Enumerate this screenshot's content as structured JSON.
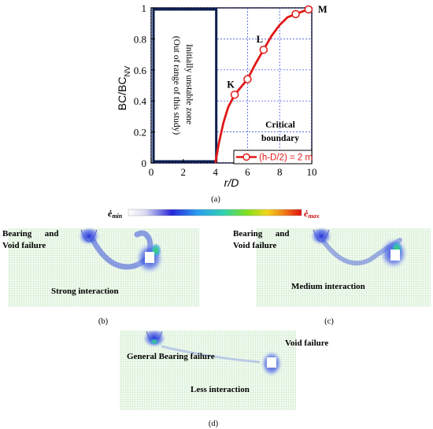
{
  "chart_data": {
    "type": "line",
    "xlabel": "r/D",
    "ylabel_main": "BC/BC",
    "ylabel_sub": "NV",
    "xlim": [
      0,
      10
    ],
    "ylim": [
      0,
      1
    ],
    "x_ticks": [
      "0",
      "2",
      "4",
      "6",
      "8",
      "10"
    ],
    "y_ticks": [
      "0",
      "0.2",
      "0.4",
      "0.6",
      "0.8",
      "1"
    ],
    "grid": true,
    "legend": "bottom-right",
    "series": [
      {
        "name": "(h-D/2) = 2 m",
        "color": "#e01818",
        "x": [
          4.0,
          4.2,
          4.5,
          4.8,
          5.2,
          5.6,
          6.0,
          6.5,
          7.0,
          7.5,
          8.0,
          8.5,
          9.0,
          9.5,
          10.0
        ],
        "y": [
          0.0,
          0.12,
          0.26,
          0.36,
          0.44,
          0.49,
          0.54,
          0.64,
          0.73,
          0.82,
          0.89,
          0.94,
          0.96,
          0.98,
          0.99
        ],
        "marked_points": [
          {
            "x": 5.2,
            "y": 0.44,
            "label": "K"
          },
          {
            "x": 6.0,
            "y": 0.54,
            "label": ""
          },
          {
            "x": 7.0,
            "y": 0.73,
            "label": "L"
          },
          {
            "x": 9.0,
            "y": 0.96,
            "label": ""
          },
          {
            "x": 9.8,
            "y": 0.99,
            "label": "M"
          }
        ]
      }
    ],
    "unstable_zone": {
      "x_from": 0,
      "x_to": 4.2,
      "line1": "Initially unstable zone",
      "line2": "(Out of range of this study)"
    },
    "boundary_label_line1": "Critical",
    "boundary_label_line2": "boundary",
    "panel_label": "(a)"
  },
  "colorbar": {
    "min_label": "ė",
    "min_sub": "min",
    "max_label": "ė",
    "max_sub": "max"
  },
  "panels": [
    {
      "id": "b",
      "label": "(b)",
      "text1": "Bearing      and",
      "text2": "Void failure",
      "text3": "Strong interaction"
    },
    {
      "id": "c",
      "label": "(c)",
      "text1": "Bearing      and",
      "text2": "Void failure",
      "text3": "Medium interaction"
    },
    {
      "id": "d",
      "label": "(d)",
      "text1": "General Bearing failure",
      "text2": "Void failure",
      "text3": "Less interaction"
    }
  ]
}
